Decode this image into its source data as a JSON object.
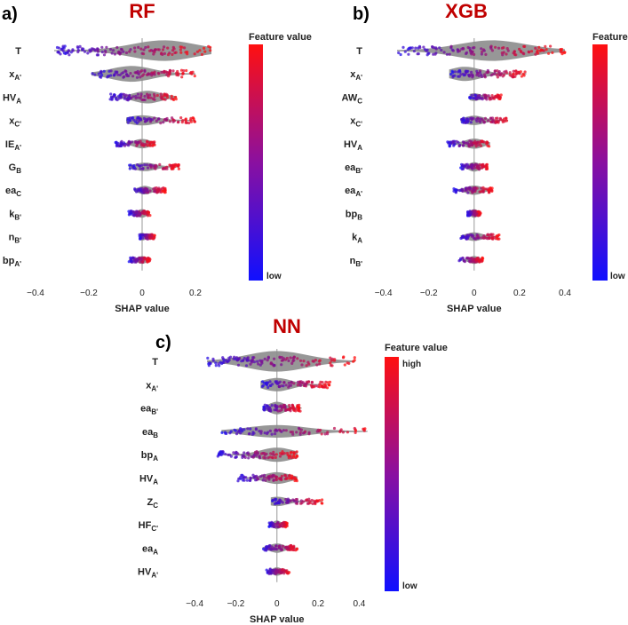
{
  "gradient_colors": {
    "low": "#1010ff",
    "high": "#ff1010",
    "violin": "#8c8c8c",
    "zero_line": "#999999"
  },
  "chart_data": [
    {
      "type": "scatter",
      "subtype": "shap-beeswarm",
      "panel_label": "a)",
      "title": "RF",
      "xlabel": "SHAP value",
      "xlim": [
        -0.4,
        0.3
      ],
      "xticks": [
        -0.4,
        -0.2,
        0,
        0.2
      ],
      "tick_labels": [
        "−0.4",
        "−0.2",
        "0",
        "0.2"
      ],
      "colorbar": {
        "title": "Feature value",
        "low_label": "low",
        "high_label": ""
      },
      "features": [
        {
          "base": "T",
          "sub": "",
          "range": [
            -0.33,
            0.26
          ],
          "violin": 1.0,
          "peak": 0.08
        },
        {
          "base": "x",
          "sub": "A'",
          "range": [
            -0.19,
            0.2
          ],
          "violin": 0.7,
          "peak": -0.04
        },
        {
          "base": "HV",
          "sub": "A",
          "range": [
            -0.12,
            0.13
          ],
          "violin": 0.5,
          "peak": 0.02
        },
        {
          "base": "x",
          "sub": "C'",
          "range": [
            -0.06,
            0.2
          ],
          "violin": 0.35,
          "peak": 0.0
        },
        {
          "base": "IE",
          "sub": "A'",
          "range": [
            -0.1,
            0.05
          ],
          "violin": 0.3,
          "peak": 0.0
        },
        {
          "base": "G",
          "sub": "B",
          "range": [
            -0.05,
            0.14
          ],
          "violin": 0.25,
          "peak": 0.01
        },
        {
          "base": "ea",
          "sub": "C",
          "range": [
            -0.03,
            0.09
          ],
          "violin": 0.25,
          "peak": 0.01
        },
        {
          "base": "k",
          "sub": "B'",
          "range": [
            -0.05,
            0.03
          ],
          "violin": 0.25,
          "peak": 0.0
        },
        {
          "base": "n",
          "sub": "B'",
          "range": [
            -0.01,
            0.05
          ],
          "violin": 0.2,
          "peak": 0.0
        },
        {
          "base": "bp",
          "sub": "A'",
          "range": [
            -0.05,
            0.03
          ],
          "violin": 0.2,
          "peak": 0.0
        }
      ]
    },
    {
      "type": "scatter",
      "subtype": "shap-beeswarm",
      "panel_label": "b)",
      "title": "XGB",
      "xlabel": "SHAP value",
      "xlim": [
        -0.43,
        0.4
      ],
      "xticks": [
        -0.4,
        -0.2,
        0,
        0.2,
        0.4
      ],
      "tick_labels": [
        "−0.4",
        "−0.2",
        "0",
        "0.2",
        "0.4"
      ],
      "colorbar": {
        "title": "Feature",
        "low_label": "low",
        "high_label": ""
      },
      "features": [
        {
          "base": "T",
          "sub": "",
          "range": [
            -0.34,
            0.4
          ],
          "violin": 1.0,
          "peak": 0.08
        },
        {
          "base": "x",
          "sub": "A'",
          "range": [
            -0.11,
            0.23
          ],
          "violin": 0.6,
          "peak": -0.04
        },
        {
          "base": "AW",
          "sub": "C",
          "range": [
            -0.02,
            0.12
          ],
          "violin": 0.2,
          "peak": 0.0
        },
        {
          "base": "x",
          "sub": "C'",
          "range": [
            -0.06,
            0.15
          ],
          "violin": 0.3,
          "peak": 0.0
        },
        {
          "base": "HV",
          "sub": "A",
          "range": [
            -0.12,
            0.07
          ],
          "violin": 0.35,
          "peak": 0.0
        },
        {
          "base": "ea",
          "sub": "B'",
          "range": [
            -0.06,
            0.06
          ],
          "violin": 0.3,
          "peak": 0.0
        },
        {
          "base": "ea",
          "sub": "A'",
          "range": [
            -0.09,
            0.08
          ],
          "violin": 0.3,
          "peak": 0.0
        },
        {
          "base": "bp",
          "sub": "B",
          "range": [
            -0.03,
            0.03
          ],
          "violin": 0.25,
          "peak": 0.0
        },
        {
          "base": "k",
          "sub": "A",
          "range": [
            -0.06,
            0.11
          ],
          "violin": 0.25,
          "peak": 0.0
        },
        {
          "base": "n",
          "sub": "B'",
          "range": [
            -0.07,
            0.04
          ],
          "violin": 0.2,
          "peak": 0.0
        }
      ]
    },
    {
      "type": "scatter",
      "subtype": "shap-beeswarm",
      "panel_label": "c)",
      "title": "NN",
      "xlabel": "SHAP value",
      "xlim": [
        -0.5,
        0.45
      ],
      "xticks": [
        -0.4,
        -0.2,
        0,
        0.2,
        0.4
      ],
      "tick_labels": [
        "−0.4",
        "−0.2",
        "0",
        "0.2",
        "0.4"
      ],
      "colorbar": {
        "title": "Feature value",
        "low_label": "low",
        "high_label": "high"
      },
      "features": [
        {
          "base": "T",
          "sub": "",
          "range": [
            -0.34,
            0.38
          ],
          "violin": 1.0,
          "peak": 0.0
        },
        {
          "base": "x",
          "sub": "A'",
          "range": [
            -0.08,
            0.26
          ],
          "violin": 0.55,
          "peak": 0.0
        },
        {
          "base": "ea",
          "sub": "B'",
          "range": [
            -0.07,
            0.12
          ],
          "violin": 0.5,
          "peak": 0.0
        },
        {
          "base": "ea",
          "sub": "B",
          "range": [
            -0.27,
            0.44
          ],
          "violin": 0.5,
          "peak": 0.0
        },
        {
          "base": "bp",
          "sub": "A",
          "range": [
            -0.29,
            0.1
          ],
          "violin": 0.6,
          "peak": 0.0
        },
        {
          "base": "HV",
          "sub": "A",
          "range": [
            -0.19,
            0.1
          ],
          "violin": 0.45,
          "peak": 0.0
        },
        {
          "base": "Z",
          "sub": "C",
          "range": [
            -0.03,
            0.22
          ],
          "violin": 0.3,
          "peak": 0.0
        },
        {
          "base": "HF",
          "sub": "C'",
          "range": [
            -0.04,
            0.05
          ],
          "violin": 0.25,
          "peak": 0.0
        },
        {
          "base": "ea",
          "sub": "A",
          "range": [
            -0.07,
            0.1
          ],
          "violin": 0.3,
          "peak": 0.0
        },
        {
          "base": "HV",
          "sub": "A'",
          "range": [
            -0.05,
            0.06
          ],
          "violin": 0.25,
          "peak": 0.0
        }
      ]
    }
  ]
}
